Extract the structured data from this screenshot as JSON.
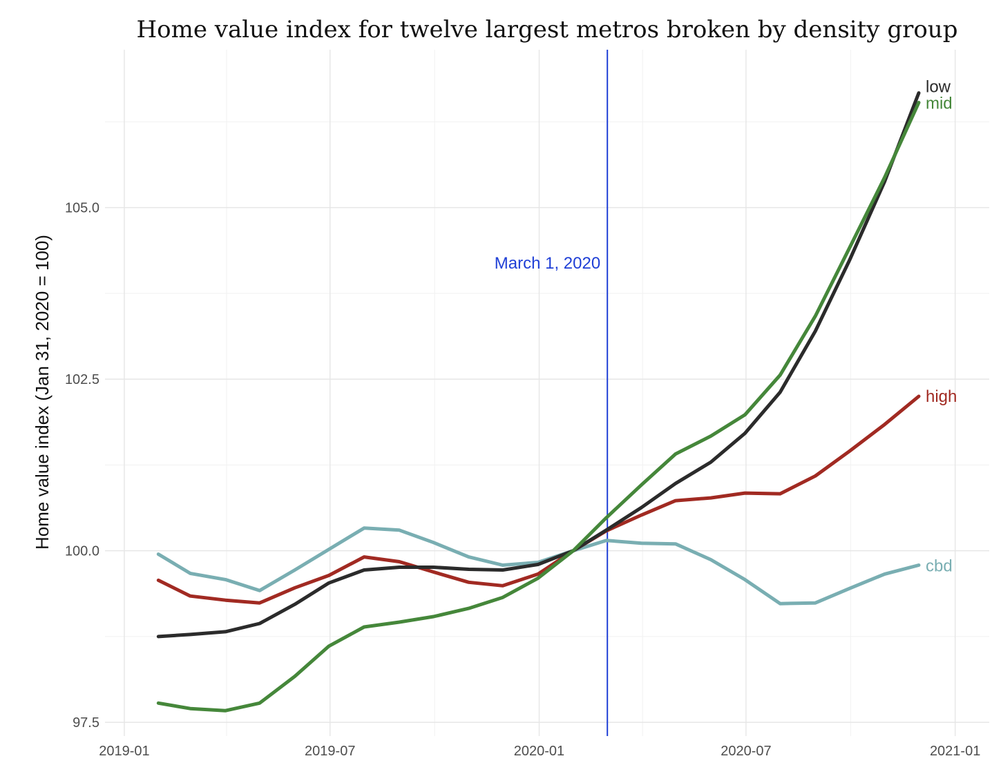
{
  "chart_data": {
    "type": "line",
    "title": "Home value index for twelve largest metros broken by density group",
    "xlabel": "",
    "ylabel": "Home value index (Jan 31, 2020 = 100)",
    "x_ticks": [
      "2019-01",
      "2019-07",
      "2020-01",
      "2020-07",
      "2021-01"
    ],
    "y_ticks": [
      "97.5",
      "100.0",
      "102.5",
      "105.0"
    ],
    "ylim": [
      97.3,
      107.3
    ],
    "xlim": [
      "2018-12-15",
      "2021-01-31"
    ],
    "grid": true,
    "legend": "direct labels at line ends",
    "x": [
      "2019-01-31",
      "2019-02-28",
      "2019-03-31",
      "2019-04-30",
      "2019-05-31",
      "2019-06-30",
      "2019-07-31",
      "2019-08-31",
      "2019-09-30",
      "2019-10-31",
      "2019-11-30",
      "2019-12-31",
      "2020-01-31",
      "2020-02-29",
      "2020-03-31",
      "2020-04-30",
      "2020-05-31",
      "2020-06-30",
      "2020-07-31",
      "2020-08-31",
      "2020-09-30",
      "2020-10-31",
      "2020-11-30"
    ],
    "series": [
      {
        "name": "cbd",
        "color": "#79aeb2",
        "values": [
          99.95,
          99.67,
          99.58,
          99.42,
          99.72,
          100.02,
          100.33,
          100.3,
          100.12,
          99.91,
          99.79,
          99.83,
          100.0,
          100.15,
          100.11,
          100.1,
          99.87,
          99.58,
          99.23,
          99.24,
          99.45,
          99.66,
          99.79
        ]
      },
      {
        "name": "high",
        "color": "#a12a22",
        "values": [
          99.57,
          99.34,
          99.28,
          99.24,
          99.46,
          99.64,
          99.91,
          99.84,
          99.69,
          99.54,
          99.49,
          99.66,
          100.0,
          100.29,
          100.52,
          100.73,
          100.77,
          100.84,
          100.83,
          101.09,
          101.45,
          101.84,
          102.25
        ]
      },
      {
        "name": "low",
        "color": "#2b2b2b",
        "values": [
          98.75,
          98.78,
          98.82,
          98.94,
          99.22,
          99.53,
          99.72,
          99.76,
          99.76,
          99.73,
          99.72,
          99.8,
          100.0,
          100.3,
          100.63,
          100.98,
          101.29,
          101.71,
          102.31,
          103.2,
          104.23,
          105.38,
          106.67
        ]
      },
      {
        "name": "mid",
        "color": "#45873a",
        "values": [
          97.78,
          97.7,
          97.67,
          97.78,
          98.17,
          98.61,
          98.89,
          98.96,
          99.04,
          99.16,
          99.32,
          99.6,
          100.0,
          100.48,
          100.96,
          101.41,
          101.67,
          101.98,
          102.56,
          103.42,
          104.41,
          105.44,
          106.53
        ]
      }
    ],
    "annotation": {
      "label": "March 1, 2020",
      "x": "2020-03-01",
      "color": "#1f3fd6"
    }
  }
}
